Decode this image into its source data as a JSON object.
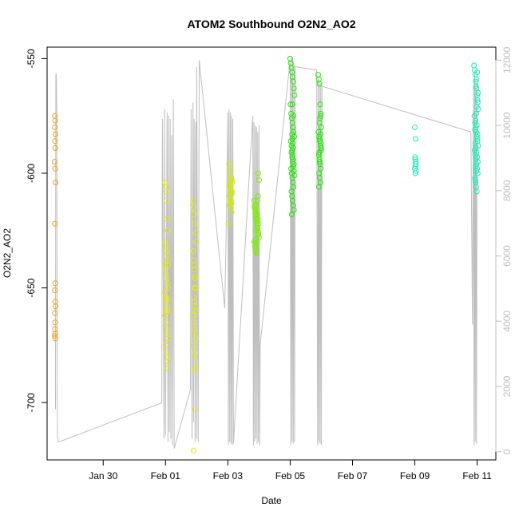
{
  "chart_data": {
    "type": "scatter",
    "title": "ATOM2 Southbound O2N2_AO2",
    "xlabel": "Date",
    "ylabel": "O2N2_AO2",
    "x_ticks": [
      "Jan 30",
      "Feb 01",
      "Feb 03",
      "Feb 05",
      "Feb 07",
      "Feb 09",
      "Feb 11"
    ],
    "x_tick_days": [
      30,
      32,
      34,
      36,
      38,
      40,
      42
    ],
    "xlim_days": [
      28.2,
      42.6
    ],
    "ylim": [
      -725,
      -545
    ],
    "y_ticks": [
      -700,
      -650,
      -600,
      -550
    ],
    "y2lim": [
      -250,
      12400
    ],
    "y2_ticks": [
      0,
      2000,
      4000,
      6000,
      8000,
      10000,
      12000
    ],
    "y2_color": "#bebebe",
    "grid": false,
    "legend": "none",
    "series": [
      {
        "color": "#f59a1c",
        "x": [
          28.45,
          28.46,
          28.45,
          28.47,
          28.45,
          28.46,
          28.44,
          28.46,
          28.47,
          28.45,
          28.46,
          28.45,
          28.46,
          28.47,
          28.45,
          28.46,
          28.45,
          28.46,
          28.45,
          28.46
        ],
        "y": [
          -575,
          -577,
          -580,
          -583,
          -586,
          -589,
          -595,
          -598,
          -604,
          -622,
          -648,
          -651,
          -656,
          -658,
          -661,
          -665,
          -668,
          -670,
          -671,
          -672
        ]
      },
      {
        "color": "#e4ee00",
        "x": [
          31.98,
          32.0,
          32.02,
          32.04,
          32.06,
          32.08,
          31.99,
          32.01,
          32.03,
          32.05,
          32.07,
          31.97,
          32.0,
          32.02,
          32.04,
          32.06,
          32.08,
          31.98,
          32.0,
          32.03,
          32.05,
          32.07,
          31.99,
          32.01,
          32.04,
          32.06,
          32.08,
          32.0,
          32.03,
          32.05,
          32.07,
          32.02,
          32.04,
          32.06,
          32.08
        ],
        "y": [
          -604,
          -606,
          -608,
          -612,
          -620,
          -625,
          -630,
          -632,
          -634,
          -636,
          -638,
          -640,
          -642,
          -644,
          -646,
          -648,
          -650,
          -652,
          -654,
          -656,
          -658,
          -660,
          -662,
          -665,
          -668,
          -670,
          -672,
          -675,
          -678,
          -680,
          -682,
          -685,
          -660,
          -655,
          -640
        ]
      },
      {
        "color": "#e4ee00",
        "x": [
          32.88,
          32.9,
          32.92,
          32.94,
          32.96,
          32.98,
          32.89,
          32.91,
          32.93,
          32.95,
          32.97,
          32.9,
          32.92,
          32.94,
          32.96,
          32.89,
          32.91,
          32.93,
          32.95,
          32.97,
          32.9,
          32.92,
          32.94,
          32.96,
          32.91,
          32.93,
          32.95,
          32.92,
          32.94,
          32.9
        ],
        "y": [
          -612,
          -615,
          -618,
          -622,
          -626,
          -630,
          -634,
          -638,
          -642,
          -646,
          -650,
          -654,
          -656,
          -658,
          -660,
          -662,
          -665,
          -668,
          -670,
          -672,
          -675,
          -678,
          -680,
          -684,
          -686,
          -650,
          -645,
          -640,
          -703,
          -721
        ]
      },
      {
        "color": "#ceee00",
        "x": [
          34.04,
          34.06,
          34.08,
          34.1,
          34.12,
          34.14,
          34.05,
          34.07,
          34.09,
          34.11,
          34.13,
          34.06,
          34.08,
          34.1,
          34.12,
          34.05,
          34.07,
          34.09,
          34.11,
          34.13,
          34.06,
          34.08,
          34.1,
          34.12,
          34.02
        ],
        "y": [
          -596,
          -598,
          -600,
          -602,
          -603,
          -604,
          -605,
          -606,
          -607,
          -608,
          -609,
          -610,
          -611,
          -612,
          -613,
          -614,
          -606,
          -604,
          -602,
          -608,
          -610,
          -612,
          -615,
          -617,
          -622
        ]
      },
      {
        "color": "#7bee00",
        "x": [
          34.84,
          34.86,
          34.88,
          34.9,
          34.92,
          34.94,
          34.96,
          34.98,
          35.0,
          34.85,
          34.87,
          34.89,
          34.91,
          34.93,
          34.95,
          34.97,
          34.99,
          34.86,
          34.88,
          34.9,
          34.92,
          34.94,
          34.96,
          34.98,
          34.87,
          34.89,
          34.91,
          34.93,
          34.95,
          34.97,
          34.9,
          34.94,
          34.98,
          35.0
        ],
        "y": [
          -612,
          -614,
          -616,
          -618,
          -620,
          -622,
          -624,
          -626,
          -628,
          -630,
          -632,
          -634,
          -614,
          -616,
          -618,
          -620,
          -622,
          -615,
          -617,
          -619,
          -621,
          -623,
          -625,
          -627,
          -629,
          -631,
          -633,
          -635,
          -612,
          -610,
          -625,
          -630,
          -600,
          -603
        ]
      },
      {
        "color": "#1ee800",
        "x": [
          36.0,
          36.02,
          36.04,
          36.06,
          36.08,
          36.1,
          36.12,
          36.14,
          36.01,
          36.03,
          36.05,
          36.07,
          36.09,
          36.11,
          36.13,
          36.02,
          36.04,
          36.06,
          36.08,
          36.1,
          36.12,
          36.03,
          36.05,
          36.07,
          36.09,
          36.11,
          36.04,
          36.06,
          36.08,
          36.1,
          36.12,
          36.05,
          36.07,
          36.09,
          36.11,
          36.06,
          36.08,
          36.1,
          36.04,
          36.06,
          36.08,
          36.1,
          36.12,
          36.14,
          36.07
        ],
        "y": [
          -550,
          -552,
          -554,
          -556,
          -558,
          -560,
          -563,
          -566,
          -570,
          -574,
          -576,
          -578,
          -580,
          -582,
          -584,
          -586,
          -588,
          -590,
          -592,
          -594,
          -596,
          -598,
          -600,
          -602,
          -604,
          -606,
          -608,
          -610,
          -612,
          -614,
          -616,
          -618,
          -585,
          -580,
          -575,
          -583,
          -587,
          -589,
          -591,
          -593,
          -595,
          -597,
          -599,
          -601,
          -570
        ]
      },
      {
        "color": "#1ee800",
        "x": [
          36.9,
          36.92,
          36.94,
          36.96,
          36.98,
          37.0,
          36.91,
          36.93,
          36.95,
          36.97,
          36.99,
          36.92,
          36.94,
          36.96,
          36.98,
          36.93,
          36.95,
          36.97,
          36.92,
          36.94,
          36.96,
          36.98,
          36.95,
          36.97,
          36.99,
          37.0,
          36.93,
          36.95
        ],
        "y": [
          -557,
          -559,
          -561,
          -570,
          -575,
          -580,
          -582,
          -584,
          -586,
          -588,
          -590,
          -592,
          -594,
          -596,
          -598,
          -600,
          -602,
          -604,
          -606,
          -578,
          -576,
          -574,
          -585,
          -583,
          -587,
          -589,
          -591,
          -595
        ]
      },
      {
        "color": "#19eeb5",
        "x": [
          40.0,
          40.02,
          40.01,
          40.03,
          40.02,
          40.0,
          40.04,
          40.02,
          40.01,
          40.03
        ],
        "y": [
          -580,
          -585,
          -593,
          -595,
          -597,
          -598,
          -599,
          -600,
          -594,
          -596
        ]
      },
      {
        "color": "#19eeb5",
        "x": [
          41.9,
          41.92,
          41.94,
          41.96,
          41.98,
          42.0,
          42.02,
          42.04,
          41.91,
          41.93,
          41.95,
          41.97,
          41.99,
          42.01,
          42.03,
          41.92,
          41.94,
          41.96,
          41.98,
          42.0,
          42.02,
          41.93,
          41.95,
          41.97,
          41.99,
          42.01,
          41.94,
          41.96,
          41.98,
          42.0,
          42.02,
          41.95,
          41.97,
          41.99,
          42.01,
          41.93,
          41.95,
          41.97,
          41.99,
          42.01,
          42.03,
          41.96,
          41.98,
          42.0,
          41.94
        ],
        "y": [
          -553,
          -555,
          -557,
          -560,
          -563,
          -566,
          -569,
          -572,
          -575,
          -578,
          -580,
          -582,
          -584,
          -586,
          -588,
          -590,
          -592,
          -594,
          -596,
          -598,
          -600,
          -602,
          -604,
          -606,
          -608,
          -585,
          -587,
          -589,
          -591,
          -593,
          -595,
          -597,
          -599,
          -579,
          -583,
          -581,
          -577,
          -574,
          -571,
          -568,
          -565,
          -562,
          -559,
          -556,
          -603
        ]
      }
    ],
    "gray_line": {
      "color": "#bebebe",
      "x": [
        28.47,
        28.48,
        28.49,
        28.5,
        28.51,
        28.52,
        28.53,
        28.54,
        28.56,
        28.58,
        31.88,
        31.9,
        31.95,
        31.97,
        32.0,
        32.05,
        32.08,
        32.1,
        32.12,
        32.15,
        32.17,
        32.2,
        32.22,
        32.25,
        32.28,
        32.8,
        32.82,
        32.85,
        32.88,
        32.9,
        32.92,
        32.95,
        32.97,
        33.0,
        33.0,
        33.05,
        33.08,
        33.9,
        33.95,
        34.0,
        34.02,
        34.04,
        34.06,
        34.08,
        34.1,
        34.12,
        34.14,
        34.16,
        34.18,
        34.8,
        34.82,
        34.84,
        34.86,
        34.88,
        34.9,
        34.92,
        34.94,
        34.96,
        34.98,
        35.0,
        35.02,
        35.04,
        36.0,
        36.02,
        36.04,
        36.06,
        36.08,
        36.1,
        36.12,
        36.14,
        36.16,
        36.85,
        36.88,
        36.9,
        36.92,
        36.94,
        36.96,
        36.98,
        37.0,
        37.02,
        41.8,
        41.85,
        41.88,
        41.9,
        41.92,
        41.94,
        41.96,
        41.98,
        42.0
      ],
      "y2": [
        1300,
        11500,
        11600,
        11400,
        10200,
        3000,
        500,
        400,
        350,
        300,
        1500,
        10200,
        400,
        10500,
        500,
        10400,
        300,
        10300,
        600,
        10200,
        400,
        9700,
        200,
        10800,
        100,
        1900,
        10500,
        400,
        10700,
        900,
        10200,
        300,
        10100,
        400,
        11800,
        300,
        12000,
        4400,
        6900,
        10400,
        200,
        10500,
        300,
        10400,
        250,
        10300,
        200,
        10200,
        250,
        10300,
        200,
        10100,
        300,
        10000,
        400,
        9950,
        250,
        9800,
        300,
        10000,
        200,
        3300,
        12000,
        200,
        12100,
        300,
        12000,
        250,
        11900,
        300,
        11800,
        11700,
        200,
        11500,
        300,
        11400,
        250,
        11300,
        200,
        11200,
        9800,
        3900,
        11200,
        200,
        11600,
        300,
        11400,
        250,
        11300,
        6700
      ]
    }
  }
}
